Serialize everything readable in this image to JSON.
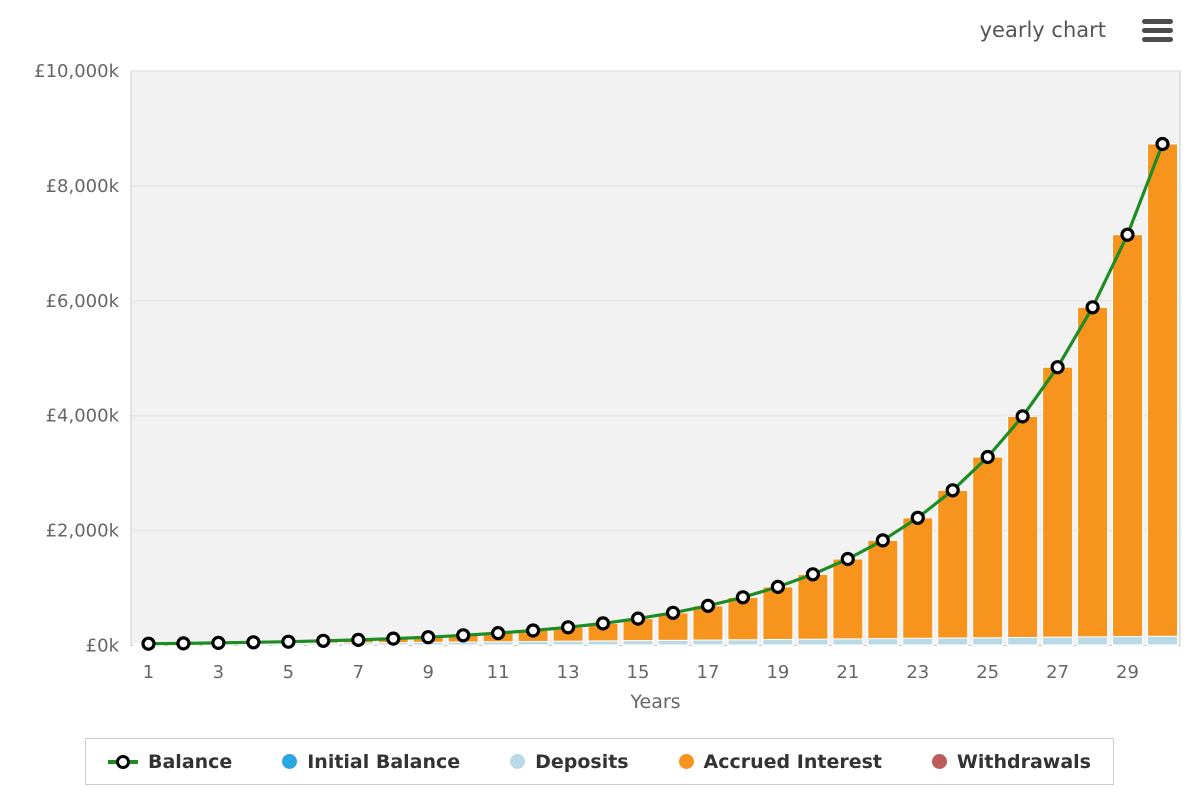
{
  "header": {
    "chart_type_label": "yearly chart",
    "menu_icon": "hamburger-menu-icon"
  },
  "chart_data": {
    "type": "bar",
    "subtype": "stacked-bars-with-line-overlay",
    "title": "",
    "xlabel": "Years",
    "ylabel": "",
    "values_unit": "£k (thousands of pounds)",
    "ylim": [
      0,
      10000
    ],
    "grid": true,
    "x": [
      1,
      2,
      3,
      4,
      5,
      6,
      7,
      8,
      9,
      10,
      11,
      12,
      13,
      14,
      15,
      16,
      17,
      18,
      19,
      20,
      21,
      22,
      23,
      24,
      25,
      26,
      27,
      28,
      29,
      30
    ],
    "x_tick_labels": [
      "1",
      "3",
      "5",
      "7",
      "9",
      "11",
      "13",
      "15",
      "17",
      "19",
      "21",
      "23",
      "25",
      "27",
      "29"
    ],
    "y_ticks": [
      {
        "value": 0,
        "label": "£0k"
      },
      {
        "value": 2000,
        "label": "£2,000k"
      },
      {
        "value": 4000,
        "label": "£4,000k"
      },
      {
        "value": 6000,
        "label": "£6,000k"
      },
      {
        "value": 8000,
        "label": "£8,000k"
      },
      {
        "value": 10000,
        "label": "£10,000k"
      }
    ],
    "series": [
      {
        "name": "Balance",
        "type": "line",
        "color": "#1e8c24",
        "marker": "white-circle-black-ring",
        "values": [
          31,
          37,
          45,
          55,
          67,
          81,
          98,
          120,
          145,
          177,
          215,
          261,
          317,
          385,
          468,
          569,
          691,
          839,
          1020,
          1239,
          1506,
          1829,
          2223,
          2701,
          3281,
          3987,
          4844,
          5886,
          7151,
          8730
        ]
      },
      {
        "name": "Initial Balance",
        "type": "bar",
        "color": "#2aa7e0",
        "values": [
          10,
          10,
          10,
          10,
          10,
          10,
          10,
          10,
          10,
          10,
          10,
          10,
          10,
          10,
          10,
          10,
          10,
          10,
          10,
          10,
          10,
          10,
          10,
          10,
          10,
          10,
          10,
          10,
          10,
          10
        ]
      },
      {
        "name": "Deposits",
        "type": "bar",
        "color": "#b8d9e8",
        "values": [
          5,
          10,
          15,
          20,
          25,
          30,
          35,
          40,
          45,
          50,
          55,
          60,
          65,
          70,
          75,
          80,
          85,
          90,
          95,
          100,
          105,
          110,
          115,
          120,
          125,
          130,
          135,
          140,
          145,
          150
        ]
      },
      {
        "name": "Accrued Interest",
        "type": "bar",
        "color": "#f7941e",
        "values": [
          16,
          17,
          20,
          25,
          32,
          41,
          53,
          70,
          90,
          117,
          150,
          191,
          242,
          305,
          383,
          479,
          596,
          739,
          915,
          1129,
          1391,
          1709,
          2098,
          2571,
          3146,
          3847,
          4699,
          5736,
          6996,
          8570
        ]
      },
      {
        "name": "Withdrawals",
        "type": "bar",
        "color": "#be5c5c",
        "values": [
          0,
          0,
          0,
          0,
          0,
          0,
          0,
          0,
          0,
          0,
          0,
          0,
          0,
          0,
          0,
          0,
          0,
          0,
          0,
          0,
          0,
          0,
          0,
          0,
          0,
          0,
          0,
          0,
          0,
          0
        ]
      }
    ],
    "colors": {
      "plot_bg": "#f2f2f2",
      "plot_border": "#cccccc",
      "gridline": "#e6e6e6",
      "axis_text": "#666666",
      "balance_line": "#1e8c24",
      "marker_fill": "#ffffff",
      "marker_stroke": "#000000",
      "bar_gap_color": "#ffffff"
    },
    "legend_position": "bottom"
  },
  "legend": {
    "items": [
      {
        "label": "Balance",
        "color": "#1e8c24",
        "marker": "line-with-circle"
      },
      {
        "label": "Initial Balance",
        "color": "#2aa7e0",
        "marker": "circle"
      },
      {
        "label": "Deposits",
        "color": "#b8d9e8",
        "marker": "circle"
      },
      {
        "label": "Accrued Interest",
        "color": "#f7941e",
        "marker": "circle"
      },
      {
        "label": "Withdrawals",
        "color": "#be5c5c",
        "marker": "circle"
      }
    ]
  }
}
